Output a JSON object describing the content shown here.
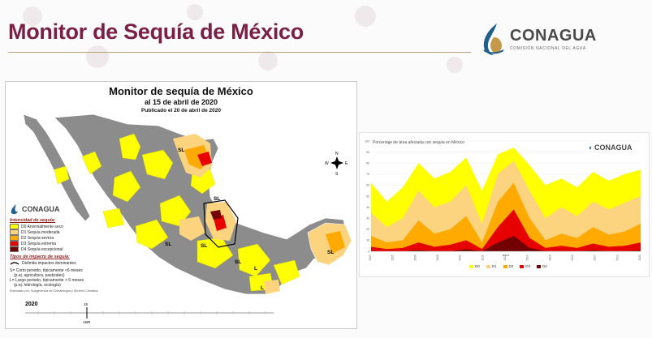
{
  "slide": {
    "title": "Monitor de Sequía de México",
    "logo": {
      "name": "CONAGUA",
      "subtitle": "COMISIÓN NACIONAL DEL AGUA",
      "icon": "conagua-drop-icon"
    }
  },
  "map": {
    "title": "Monitor de sequía de México",
    "date_line": "al 15 de abril de 2020",
    "published_line": "Publicado el 20 de abril de 2020",
    "logo_name": "CONAGUA",
    "compass": {
      "n": "N",
      "s": "S",
      "e": "E",
      "w": "W"
    },
    "region_labels": [
      "SL",
      "SL",
      "SL",
      "SL",
      "SL",
      "L",
      "L",
      "SL"
    ],
    "legend": {
      "intensity_heading": "Intensidad de sequía:",
      "items": [
        {
          "label": "D0 Anormalmente seco",
          "color": "#ffff00"
        },
        {
          "label": "D1 Sequía moderada",
          "color": "#fcd37f"
        },
        {
          "label": "D2 Sequía severa",
          "color": "#ffaa00"
        },
        {
          "label": "D3 Sequía extrema",
          "color": "#e60000"
        },
        {
          "label": "D4 Sequía excepcional",
          "color": "#730000"
        }
      ],
      "impact_heading": "Tipos de impacto de sequía:",
      "impact_line": "Delimita impactos dominantes",
      "short_term": "S= Corto periodo, típicamente <6 meses",
      "short_term_ex": "(p.ej. agricultura, pastizales)",
      "long_term": "L= Largo periodo, típicamente > 6 meses",
      "long_term_ex": "(p.ej. hidrología, ecología)",
      "credit": "Elaborado por: Subgerencia de Climatología y Servicio Climático"
    },
    "timeline": {
      "year": "2020",
      "marker_day": "15",
      "marker_month": "ABR"
    }
  },
  "chart": {
    "title": "Porcentaje de área afectada con sequía en México",
    "logo_name": "CONAGUA",
    "xlabel": "fecha"
  },
  "chart_data": {
    "type": "area",
    "title": "Porcentaje de área afectada con sequía en México",
    "xlabel": "fecha",
    "ylabel": "",
    "ylim": [
      0,
      100
    ],
    "y_ticks": [
      "0",
      "10",
      "20",
      "30",
      "40",
      "50",
      "60",
      "70",
      "80",
      "90",
      "100"
    ],
    "x": [
      "2003",
      "2004",
      "2005",
      "2006",
      "2007",
      "2008",
      "2009",
      "2010",
      "2011",
      "2012",
      "2013",
      "2014",
      "2015",
      "2016",
      "2017",
      "2018",
      "2019",
      "2020"
    ],
    "x_tick_labels": [
      "2003",
      "2005",
      "2006",
      "2008",
      "2009",
      "2011",
      "2012",
      "2014",
      "2015",
      "2016",
      "2017",
      "2019",
      "2020"
    ],
    "series": [
      {
        "name": "D0",
        "color": "#ffff00",
        "values": [
          62,
          45,
          58,
          80,
          66,
          72,
          85,
          55,
          88,
          94,
          78,
          60,
          66,
          58,
          72,
          64,
          70,
          74
        ]
      },
      {
        "name": "D1",
        "color": "#fcd37f",
        "values": [
          35,
          22,
          30,
          55,
          40,
          45,
          60,
          25,
          70,
          82,
          55,
          30,
          40,
          32,
          45,
          38,
          44,
          50
        ]
      },
      {
        "name": "D2",
        "color": "#ffaa00",
        "values": [
          14,
          8,
          10,
          28,
          16,
          20,
          32,
          8,
          45,
          62,
          30,
          10,
          16,
          12,
          22,
          15,
          18,
          25
        ]
      },
      {
        "name": "D3",
        "color": "#e60000",
        "values": [
          4,
          2,
          3,
          8,
          4,
          6,
          10,
          2,
          22,
          38,
          12,
          3,
          5,
          3,
          7,
          4,
          5,
          8
        ]
      },
      {
        "name": "D4",
        "color": "#730000",
        "values": [
          0,
          0,
          0,
          1,
          0,
          0,
          2,
          0,
          8,
          14,
          3,
          0,
          0,
          0,
          1,
          0,
          0,
          1
        ]
      }
    ],
    "legend": [
      "D0",
      "D1",
      "D2",
      "D3",
      "D4"
    ],
    "grid": true
  }
}
